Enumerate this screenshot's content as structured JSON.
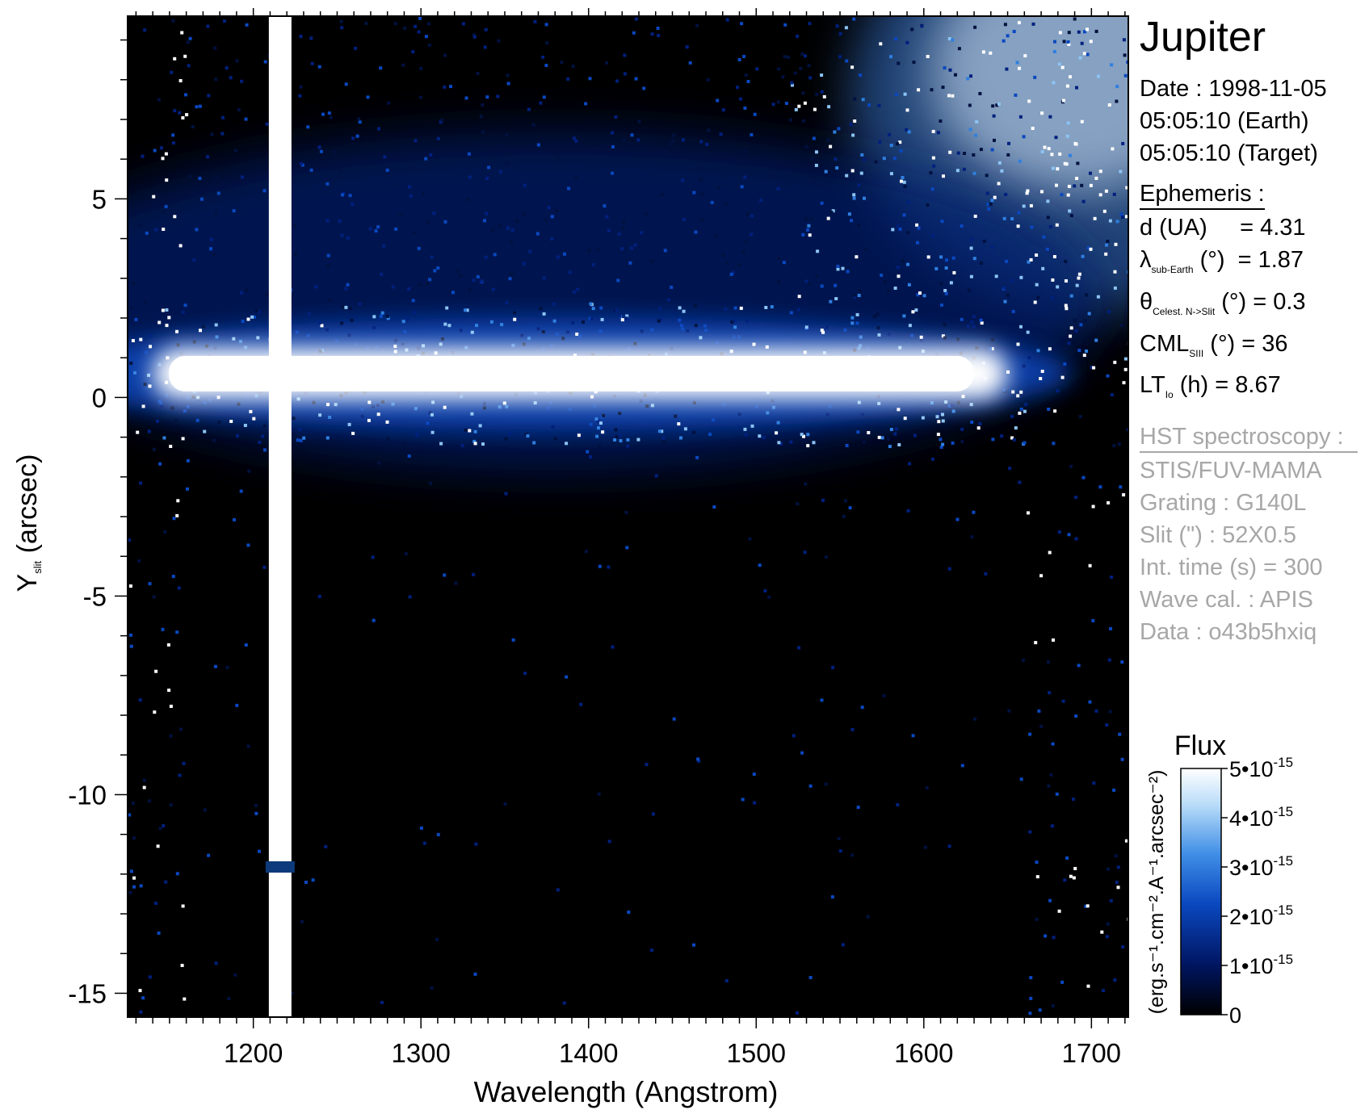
{
  "figure": {
    "title": "Jupiter",
    "date_lines": [
      "Date : 1998-11-05",
      "05:05:10 (Earth)",
      "05:05:10 (Target)"
    ],
    "ephemeris": {
      "header": "Ephemeris :",
      "rows": [
        {
          "symbol": "d (UA)",
          "sub": "",
          "rest": "     = 4.31"
        },
        {
          "symbol": "λ",
          "sub": "sub-Earth",
          "rest": " (°)  = 1.87"
        },
        {
          "symbol": "θ",
          "sub": "Celest. N->Slit",
          "rest": " (°) = 0.3"
        },
        {
          "symbol": "CML",
          "sub": "SIII",
          "rest": " (°) = 36"
        },
        {
          "symbol": "LT",
          "sub": "Io",
          "rest": " (h) = 8.67"
        }
      ]
    },
    "instrument": {
      "header": "HST spectroscopy :",
      "lines": [
        "STIS/FUV-MAMA",
        "Grating : G140L",
        "Slit (\") : 52X0.5",
        "Int. time (s) = 300",
        "Wave cal. : APIS",
        "Data : o43b5hxiq"
      ],
      "color": "#a7a7a7"
    }
  },
  "chart_data": {
    "type": "heatmap",
    "xlabel": "Wavelength (Angstrom)",
    "ylabel_main": "Y",
    "ylabel_sub": "slit",
    "ylabel_rest": " (arcsec)",
    "xlim": [
      1125,
      1722
    ],
    "ylim": [
      -15.6,
      9.6
    ],
    "xticks": [
      1200,
      1300,
      1400,
      1500,
      1600,
      1700
    ],
    "yticks": [
      5,
      0,
      -5,
      -10,
      -15
    ],
    "xminor_step": 10,
    "yminor_step": 1,
    "features": {
      "lyman_alpha_wavelength": 1216,
      "lyman_alpha_gap_y": -11.8,
      "planet_band_y_center": 0.6,
      "planet_band_x_range": [
        1140,
        1650
      ]
    },
    "colorbar": {
      "label": "Flux",
      "units": "(erg.s⁻¹.cm⁻².A⁻¹.arcsec⁻²)",
      "min": 0,
      "max": 5e-15,
      "tick_labels": [
        {
          "value": 0,
          "mant": "0",
          "exp": ""
        },
        {
          "value": 1e-15,
          "mant": "1•10",
          "exp": "-15"
        },
        {
          "value": 2e-15,
          "mant": "2•10",
          "exp": "-15"
        },
        {
          "value": 3e-15,
          "mant": "3•10",
          "exp": "-15"
        },
        {
          "value": 4e-15,
          "mant": "4•10",
          "exp": "-15"
        },
        {
          "value": 5e-15,
          "mant": "5•10",
          "exp": "-15"
        }
      ],
      "colors": [
        "#000000",
        "#001560",
        "#0a48c0",
        "#3f8ee6",
        "#b7dbf8",
        "#ffffff"
      ]
    }
  }
}
